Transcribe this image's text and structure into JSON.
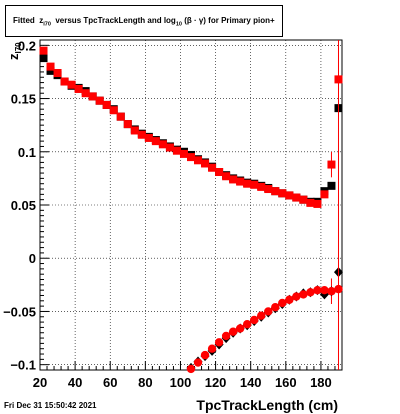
{
  "title": {
    "prefix": "Fitted",
    "var": "z",
    "var_sub": "I70",
    "mid": "versus TpcTrackLength and log",
    "log_sub": "10",
    "suffix": "(β · γ) for Primary pion+"
  },
  "footer": "Fri Dec 31 15:50:42 2021",
  "chart_data": {
    "type": "scatter",
    "title": "Fitted z_I70 versus TpcTrackLength and log10(β·γ) for Primary pion+",
    "xlabel": "TpcTrackLength (cm)",
    "ylabel": "z_I70",
    "ylabel_main": "z",
    "ylabel_sub": "I70",
    "xlim": [
      20,
      192
    ],
    "ylim": [
      -0.105,
      0.205
    ],
    "xticks": [
      20,
      40,
      60,
      80,
      100,
      120,
      140,
      160,
      180
    ],
    "yticks": [
      -0.1,
      -0.05,
      0,
      0.05,
      0.1,
      0.15,
      0.2
    ],
    "ytick_labels": [
      "−0.1",
      "−0.05",
      "0",
      "0.05",
      "0.1",
      "0.15",
      "0.2"
    ],
    "grid": true,
    "series": [
      {
        "color": "#000000",
        "marker": "square",
        "x": [
          22,
          26,
          30,
          34,
          38,
          42,
          46,
          50,
          54,
          58,
          62,
          66,
          70,
          74,
          78,
          82,
          86,
          90,
          94,
          98,
          102,
          106,
          110,
          114,
          118,
          122,
          126,
          130,
          134,
          138,
          142,
          146,
          150,
          154,
          158,
          162,
          166,
          170,
          174,
          178,
          182,
          186,
          190
        ],
        "y": [
          0.188,
          0.176,
          0.172,
          0.166,
          0.162,
          0.16,
          0.157,
          0.152,
          0.148,
          0.144,
          0.14,
          0.133,
          0.126,
          0.121,
          0.117,
          0.114,
          0.111,
          0.108,
          0.105,
          0.102,
          0.1,
          0.097,
          0.093,
          0.09,
          0.086,
          0.081,
          0.078,
          0.075,
          0.073,
          0.071,
          0.07,
          0.068,
          0.066,
          0.063,
          0.061,
          0.059,
          0.057,
          0.055,
          0.053,
          0.053,
          0.063,
          0.068,
          0.141
        ]
      },
      {
        "color": "#ff0000",
        "marker": "square",
        "x": [
          22,
          26,
          30,
          34,
          38,
          42,
          46,
          50,
          54,
          58,
          62,
          66,
          70,
          74,
          78,
          82,
          86,
          90,
          94,
          98,
          102,
          106,
          110,
          114,
          118,
          122,
          126,
          130,
          134,
          138,
          142,
          146,
          150,
          154,
          158,
          162,
          166,
          170,
          174,
          178,
          182,
          186,
          190
        ],
        "y": [
          0.195,
          0.18,
          0.174,
          0.166,
          0.163,
          0.159,
          0.155,
          0.152,
          0.148,
          0.144,
          0.139,
          0.133,
          0.126,
          0.12,
          0.116,
          0.113,
          0.11,
          0.107,
          0.104,
          0.101,
          0.098,
          0.095,
          0.092,
          0.089,
          0.085,
          0.081,
          0.077,
          0.074,
          0.072,
          0.07,
          0.069,
          0.067,
          0.065,
          0.063,
          0.061,
          0.059,
          0.057,
          0.055,
          0.052,
          0.051,
          0.06,
          0.088,
          0.168
        ]
      },
      {
        "color": "#000000",
        "marker": "diamond",
        "x": [
          106,
          110,
          114,
          118,
          122,
          126,
          130,
          134,
          138,
          142,
          146,
          150,
          154,
          158,
          162,
          166,
          170,
          174,
          178,
          182,
          186,
          190
        ],
        "y": [
          -0.103,
          -0.097,
          -0.092,
          -0.087,
          -0.081,
          -0.075,
          -0.07,
          -0.066,
          -0.063,
          -0.059,
          -0.055,
          -0.051,
          -0.047,
          -0.043,
          -0.039,
          -0.036,
          -0.033,
          -0.032,
          -0.03,
          -0.034,
          -0.031,
          -0.013
        ]
      },
      {
        "color": "#ff0000",
        "marker": "circle",
        "x": [
          106,
          110,
          114,
          118,
          122,
          126,
          130,
          134,
          138,
          142,
          146,
          150,
          154,
          158,
          162,
          166,
          170,
          174,
          178,
          182,
          186,
          190
        ],
        "y": [
          -0.104,
          -0.098,
          -0.091,
          -0.085,
          -0.079,
          -0.073,
          -0.069,
          -0.066,
          -0.062,
          -0.058,
          -0.054,
          -0.05,
          -0.046,
          -0.042,
          -0.039,
          -0.036,
          -0.034,
          -0.032,
          -0.03,
          -0.03,
          -0.031,
          -0.029
        ]
      }
    ]
  }
}
